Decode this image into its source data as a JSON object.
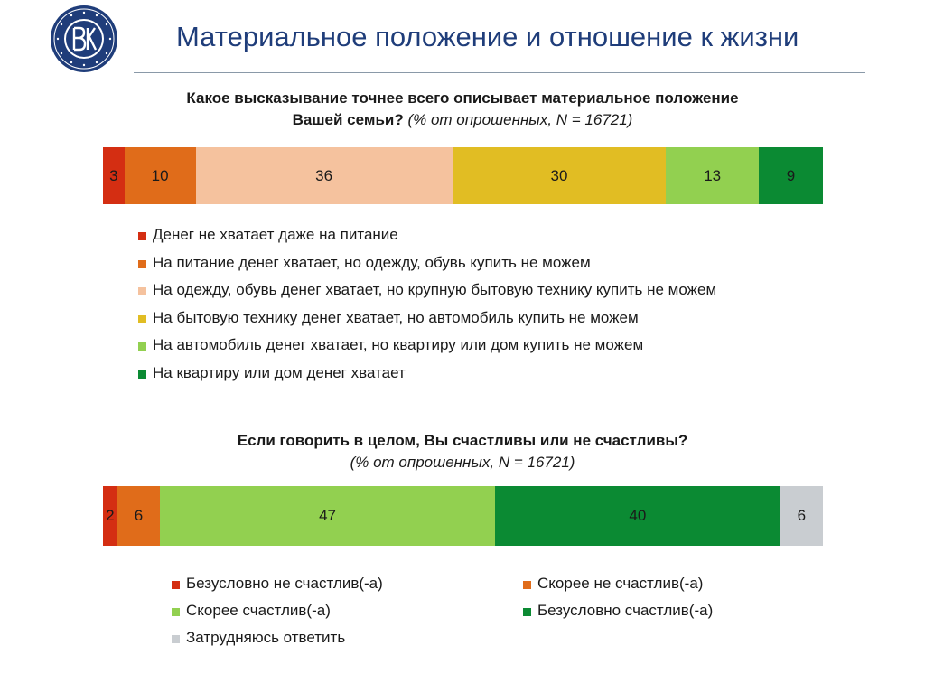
{
  "slide": {
    "title": "Материальное положение и отношение к жизни"
  },
  "chart_data": [
    {
      "type": "bar",
      "orientation": "horizontal-stacked-100",
      "title_bold": "Какое высказывание точнее всего описывает материальное положение Вашей семьи?",
      "title_italic": "(% от опрошенных, N = 16721)",
      "series": [
        {
          "name": "Денег не хватает даже на питание",
          "value": 3,
          "color": "#d42e12"
        },
        {
          "name": "На питание денег хватает, но одежду, обувь купить не можем",
          "value": 10,
          "color": "#e06c1a"
        },
        {
          "name": "На одежду, обувь денег хватает, но крупную бытовую технику купить не можем",
          "value": 36,
          "color": "#f5c29e"
        },
        {
          "name": "На бытовую технику денег хватает, но автомобиль купить не можем",
          "value": 30,
          "color": "#e1bd23"
        },
        {
          "name": "На автомобиль денег хватает, но квартиру или дом купить не можем",
          "value": 13,
          "color": "#92d050"
        },
        {
          "name": "На квартиру или дом денег хватает",
          "value": 9,
          "color": "#0b8a33"
        }
      ],
      "legend_position": "below"
    },
    {
      "type": "bar",
      "orientation": "horizontal-stacked-100",
      "title_bold": "Если говорить в целом, Вы счастливы или не счастливы?",
      "title_italic": "(% от опрошенных, N = 16721)",
      "series": [
        {
          "name": "Безусловно не счастлив(-а)",
          "value": 2,
          "color": "#d42e12"
        },
        {
          "name": "Скорее не счастлив(-а)",
          "value": 6,
          "color": "#e06c1a"
        },
        {
          "name": "Скорее счастлив(-а)",
          "value": 47,
          "color": "#92d050"
        },
        {
          "name": "Безусловно счастлив(-а)",
          "value": 40,
          "color": "#0b8a33"
        },
        {
          "name": "Затрудняюсь ответить",
          "value": 6,
          "color": "#c9cdd1"
        }
      ],
      "legend_position": "below"
    }
  ]
}
